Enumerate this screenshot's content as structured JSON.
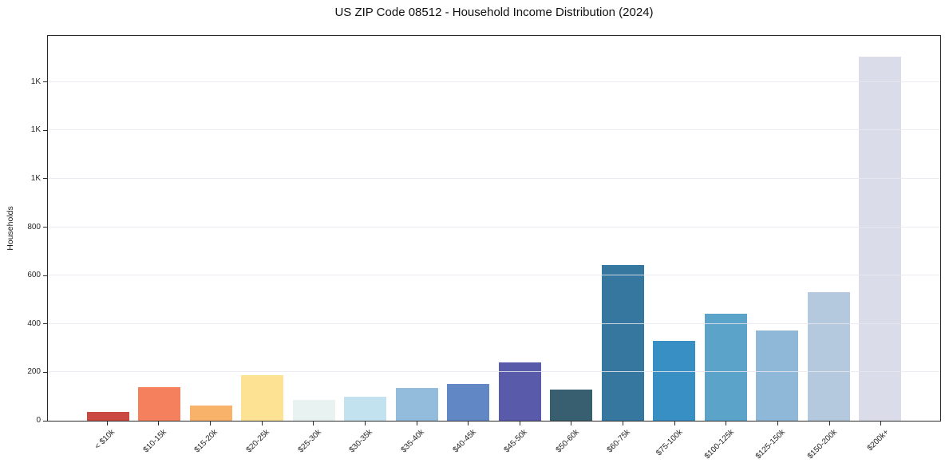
{
  "chart_data": {
    "type": "bar",
    "title": "US ZIP Code 08512 - Household Income Distribution (2024)",
    "xlabel": "",
    "ylabel": "Households",
    "categories": [
      "< $10k",
      "$10-15k",
      "$15-20k",
      "$20-25k",
      "$25-30k",
      "$30-35k",
      "$35-40k",
      "$40-45k",
      "$45-50k",
      "$50-60k",
      "$60-75k",
      "$75-100k",
      "$100-125k",
      "$125-150k",
      "$150-200k",
      "$200k+"
    ],
    "values": [
      36,
      140,
      62,
      187,
      86,
      100,
      136,
      152,
      241,
      130,
      645,
      331,
      441,
      372,
      530,
      1505
    ],
    "bar_colors": [
      "#ca4a42",
      "#f4805e",
      "#f9b269",
      "#fde294",
      "#e8f3f1",
      "#c3e2ef",
      "#92bbdc",
      "#6187c5",
      "#5a5aab",
      "#375f70",
      "#35779e",
      "#378fc3",
      "#5ba3c9",
      "#8fb7d8",
      "#b5c9de",
      "#dadce9"
    ],
    "ylim": [
      0,
      1590
    ],
    "yticks": {
      "values": [
        0,
        200,
        400,
        600,
        800,
        1000,
        1200,
        1400
      ],
      "labels": [
        "0",
        "200",
        "400",
        "600",
        "800",
        "1K",
        "1K",
        "1K"
      ]
    },
    "grid": "horizontal-only",
    "legend": "none",
    "x_tick_rotation_deg": 45
  },
  "colors": {
    "background": "#ffffff",
    "spine": "#2a2a2a",
    "gridline": "#e7e7ee",
    "text": "#1a1a1a"
  }
}
